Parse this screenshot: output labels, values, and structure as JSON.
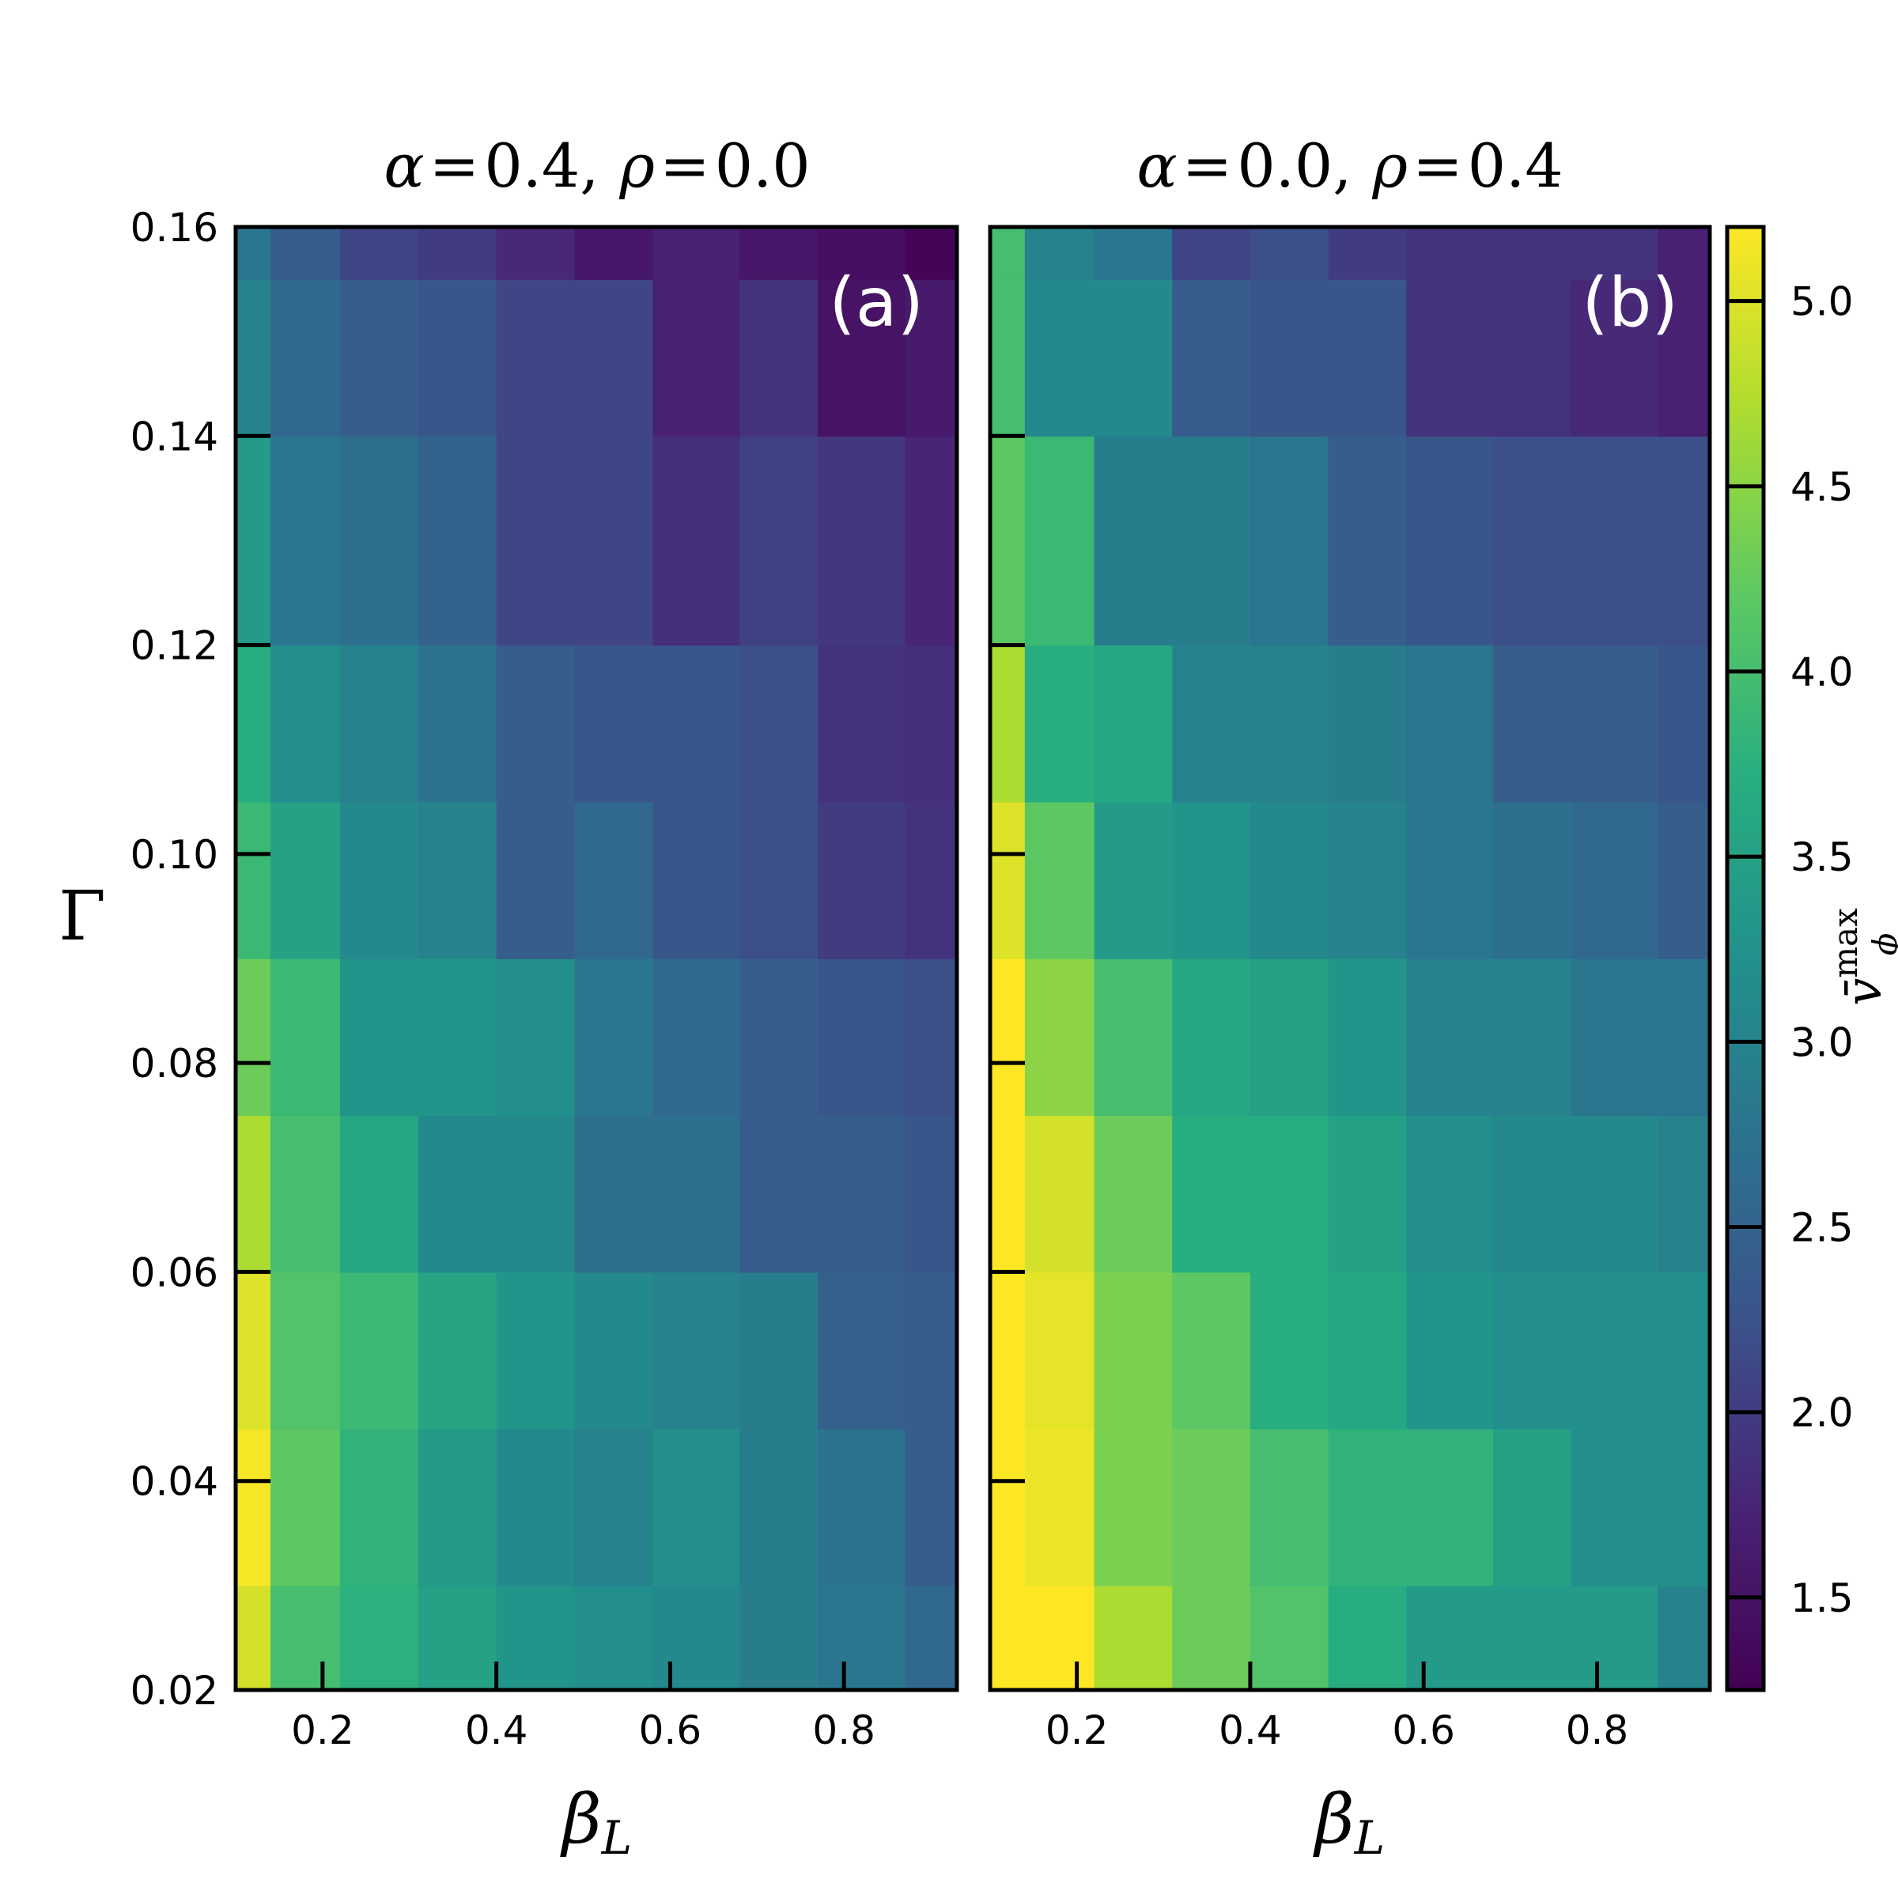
{
  "chart_data": [
    {
      "type": "heatmap",
      "panel_label": "(a)",
      "title_parts": {
        "a1": "α",
        "eq1": "=",
        "v1": "0.4",
        "sep": ",",
        "a2": "ρ",
        "eq2": "=",
        "v2": "0.0"
      },
      "xlabel": {
        "main": "β",
        "sub": "L"
      },
      "ylabel": "Γ",
      "x_edges": [
        0.1,
        0.14,
        0.22,
        0.31,
        0.4,
        0.49,
        0.58,
        0.68,
        0.77,
        0.87,
        0.93
      ],
      "y_edges": [
        0.02,
        0.03,
        0.045,
        0.06,
        0.075,
        0.09,
        0.105,
        0.12,
        0.14,
        0.155,
        0.16
      ],
      "xlim": [
        0.1,
        0.93
      ],
      "ylim": [
        0.02,
        0.16
      ],
      "xticks": [
        0.2,
        0.4,
        0.6,
        0.8
      ],
      "xtick_labels": [
        "0.2",
        "0.4",
        "0.6",
        "0.8"
      ],
      "yticks": [
        0.02,
        0.04,
        0.06,
        0.08,
        0.1,
        0.12,
        0.14,
        0.16
      ],
      "ytick_labels": [
        "0.02",
        "0.04",
        "0.06",
        "0.08",
        "0.10",
        "0.12",
        "0.14",
        "0.16"
      ],
      "values": [
        [
          4.95,
          4.0,
          3.75,
          3.5,
          3.3,
          3.2,
          3.1,
          2.9,
          2.8,
          2.6
        ],
        [
          5.15,
          4.2,
          3.8,
          3.4,
          3.1,
          3.0,
          3.2,
          2.9,
          2.75,
          2.4
        ],
        [
          5.0,
          4.1,
          3.9,
          3.55,
          3.3,
          3.1,
          3.0,
          2.9,
          2.45,
          2.4
        ],
        [
          4.7,
          4.0,
          3.6,
          3.1,
          3.1,
          2.7,
          2.7,
          2.4,
          2.4,
          2.3
        ],
        [
          4.3,
          3.9,
          3.3,
          3.3,
          3.2,
          2.8,
          2.6,
          2.4,
          2.3,
          2.2
        ],
        [
          3.9,
          3.5,
          3.1,
          3.0,
          2.4,
          2.6,
          2.3,
          2.2,
          2.0,
          1.9
        ],
        [
          3.7,
          3.2,
          3.0,
          2.75,
          2.4,
          2.3,
          2.3,
          2.2,
          1.9,
          1.85
        ],
        [
          3.4,
          2.8,
          2.7,
          2.5,
          2.1,
          2.1,
          1.85,
          2.05,
          1.95,
          1.75
        ],
        [
          3.0,
          2.6,
          2.4,
          2.3,
          2.1,
          2.1,
          1.7,
          1.9,
          1.5,
          1.6
        ],
        [
          2.8,
          2.4,
          2.1,
          2.0,
          1.8,
          1.55,
          1.7,
          1.55,
          1.45,
          1.3
        ]
      ]
    },
    {
      "type": "heatmap",
      "panel_label": "(b)",
      "title_parts": {
        "a1": "α",
        "eq1": "=",
        "v1": "0.0",
        "sep": ",",
        "a2": "ρ",
        "eq2": "=",
        "v2": "0.4"
      },
      "xlabel": {
        "main": "β",
        "sub": "L"
      },
      "x_edges": [
        0.1,
        0.14,
        0.22,
        0.31,
        0.4,
        0.49,
        0.58,
        0.68,
        0.77,
        0.87,
        0.93
      ],
      "y_edges": [
        0.02,
        0.03,
        0.045,
        0.06,
        0.075,
        0.09,
        0.105,
        0.12,
        0.14,
        0.155,
        0.16
      ],
      "xlim": [
        0.1,
        0.93
      ],
      "ylim": [
        0.02,
        0.16
      ],
      "xticks": [
        0.2,
        0.4,
        0.6,
        0.8
      ],
      "xtick_labels": [
        "0.2",
        "0.4",
        "0.6",
        "0.8"
      ],
      "yticks": [
        0.02,
        0.04,
        0.06,
        0.08,
        0.1,
        0.12,
        0.14,
        0.16
      ],
      "values": [
        [
          5.2,
          5.2,
          4.7,
          4.3,
          4.1,
          3.7,
          3.4,
          3.4,
          3.4,
          3.0
        ],
        [
          5.2,
          5.1,
          4.4,
          4.3,
          4.0,
          3.8,
          3.8,
          3.5,
          3.2,
          3.2
        ],
        [
          5.2,
          5.05,
          4.4,
          4.2,
          3.7,
          3.6,
          3.3,
          3.2,
          3.2,
          3.2
        ],
        [
          5.2,
          4.95,
          4.3,
          3.7,
          3.7,
          3.5,
          3.2,
          3.1,
          3.1,
          3.0
        ],
        [
          5.2,
          4.5,
          4.0,
          3.6,
          3.5,
          3.3,
          3.0,
          3.0,
          2.8,
          2.8
        ],
        [
          5.0,
          4.2,
          3.4,
          3.3,
          3.1,
          3.0,
          2.8,
          2.7,
          2.6,
          2.4
        ],
        [
          4.7,
          3.7,
          3.6,
          3.0,
          3.0,
          2.9,
          2.8,
          2.4,
          2.4,
          2.3
        ],
        [
          4.2,
          3.9,
          2.9,
          2.9,
          2.8,
          2.4,
          2.3,
          2.2,
          2.2,
          2.2
        ],
        [
          4.0,
          3.1,
          3.1,
          2.4,
          2.3,
          2.3,
          1.9,
          1.9,
          1.8,
          1.7
        ],
        [
          4.0,
          3.0,
          2.8,
          2.1,
          2.2,
          2.0,
          1.9,
          1.9,
          1.9,
          1.7
        ]
      ]
    }
  ],
  "colorbar": {
    "colormap": "viridis",
    "vmin": 1.25,
    "vmax": 5.2,
    "ticks": [
      1.5,
      2.0,
      2.5,
      3.0,
      3.5,
      4.0,
      4.5,
      5.0
    ],
    "tick_labels": [
      "1.5",
      "2.0",
      "2.5",
      "3.0",
      "3.5",
      "4.0",
      "4.5",
      "5.0"
    ],
    "label": {
      "main": "v̄",
      "sup": "max",
      "sub": "ϕ"
    }
  },
  "colors": {
    "panel_label": "#ffffff",
    "frame": "#000000"
  }
}
